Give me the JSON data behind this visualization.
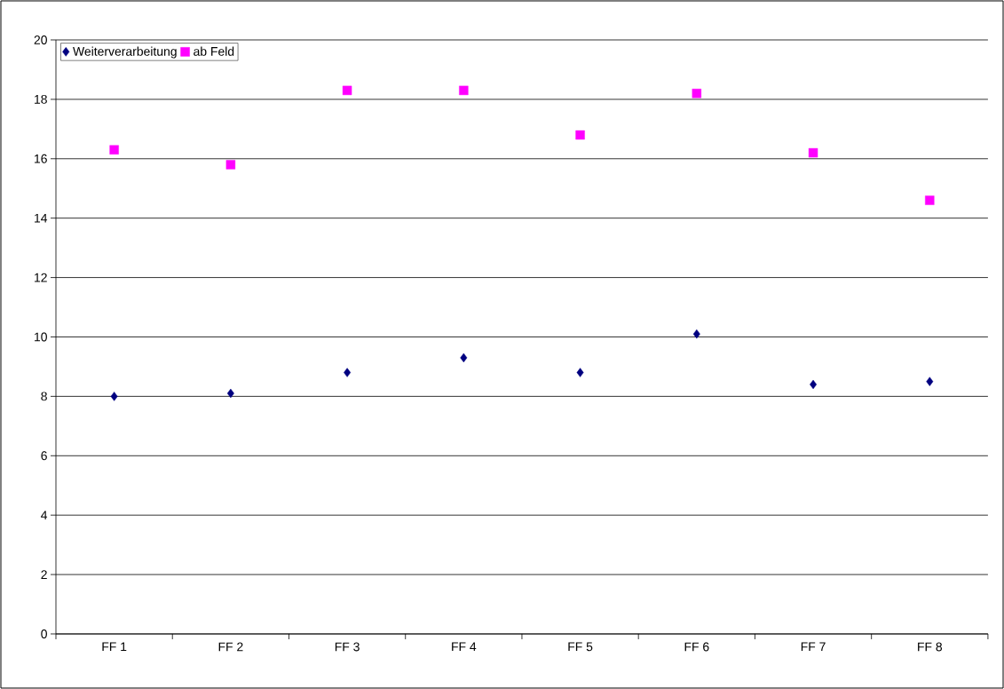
{
  "chart_data": {
    "type": "scatter",
    "categories": [
      "FF 1",
      "FF 2",
      "FF 3",
      "FF 4",
      "FF 5",
      "FF 6",
      "FF 7",
      "FF 8"
    ],
    "series": [
      {
        "name": "Weiterverarbeitung",
        "color": "#000080",
        "marker": "diamond",
        "values": [
          8.0,
          8.1,
          8.8,
          9.3,
          8.8,
          10.1,
          8.4,
          8.5
        ]
      },
      {
        "name": "ab Feld",
        "color": "#ff00ff",
        "marker": "square",
        "values": [
          16.3,
          15.8,
          18.3,
          18.3,
          16.8,
          18.2,
          16.2,
          14.6
        ]
      }
    ],
    "ylim": [
      0,
      20
    ],
    "yticks": [
      0,
      2,
      4,
      6,
      8,
      10,
      12,
      14,
      16,
      18,
      20
    ],
    "grid": "y",
    "legend": "top left"
  }
}
